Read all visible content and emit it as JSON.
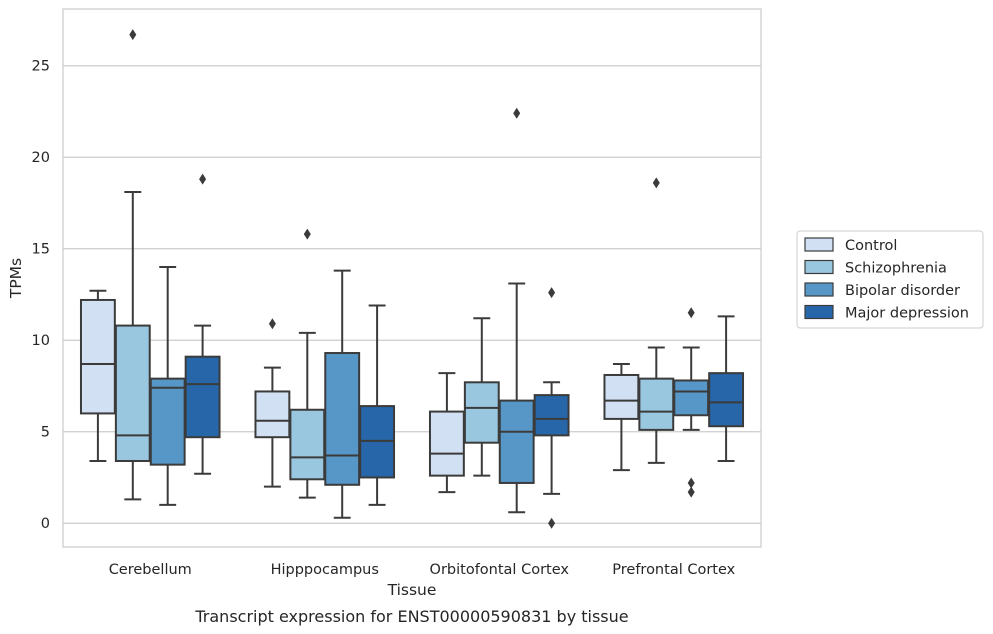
{
  "chart_data": {
    "type": "box",
    "title": "",
    "caption": "Transcript expression for ENST00000590831 by tissue",
    "xlabel": "Tissue",
    "ylabel": "TPMs",
    "ylim": [
      -1.3,
      28.1
    ],
    "yticks": [
      0,
      5,
      10,
      15,
      20,
      25
    ],
    "grid": "horizontal",
    "legend_position": "right",
    "categories": [
      "Cerebellum",
      "Hipppocampus",
      "Orbitofontal Cortex",
      "Prefrontal Cortex"
    ],
    "series": [
      {
        "name": "Control",
        "color": "#d1e0f2",
        "boxes": [
          {
            "whisker_low": 3.4,
            "q1": 6.0,
            "median": 8.7,
            "q3": 12.2,
            "whisker_high": 12.7,
            "outliers": []
          },
          {
            "whisker_low": 2.0,
            "q1": 4.7,
            "median": 5.6,
            "q3": 7.2,
            "whisker_high": 8.5,
            "outliers": [
              10.9
            ]
          },
          {
            "whisker_low": 1.7,
            "q1": 2.6,
            "median": 3.8,
            "q3": 6.1,
            "whisker_high": 8.2,
            "outliers": []
          },
          {
            "whisker_low": 2.9,
            "q1": 5.7,
            "median": 6.7,
            "q3": 8.1,
            "whisker_high": 8.7,
            "outliers": []
          }
        ]
      },
      {
        "name": "Schizophrenia",
        "color": "#9ac7e0",
        "boxes": [
          {
            "whisker_low": 1.3,
            "q1": 3.4,
            "median": 4.8,
            "q3": 10.8,
            "whisker_high": 18.1,
            "outliers": [
              26.7
            ]
          },
          {
            "whisker_low": 1.4,
            "q1": 2.4,
            "median": 3.6,
            "q3": 6.2,
            "whisker_high": 10.4,
            "outliers": [
              15.8
            ]
          },
          {
            "whisker_low": 2.6,
            "q1": 4.4,
            "median": 6.3,
            "q3": 7.7,
            "whisker_high": 11.2,
            "outliers": []
          },
          {
            "whisker_low": 3.3,
            "q1": 5.1,
            "median": 6.1,
            "q3": 7.9,
            "whisker_high": 9.6,
            "outliers": [
              18.6
            ]
          }
        ]
      },
      {
        "name": "Bipolar disorder",
        "color": "#5697c8",
        "boxes": [
          {
            "whisker_low": 1.0,
            "q1": 3.2,
            "median": 7.4,
            "q3": 7.9,
            "whisker_high": 14.0,
            "outliers": []
          },
          {
            "whisker_low": 0.3,
            "q1": 2.1,
            "median": 3.7,
            "q3": 9.3,
            "whisker_high": 13.8,
            "outliers": []
          },
          {
            "whisker_low": 0.6,
            "q1": 2.2,
            "median": 5.0,
            "q3": 6.7,
            "whisker_high": 13.1,
            "outliers": [
              22.4
            ]
          },
          {
            "whisker_low": 5.1,
            "q1": 5.9,
            "median": 7.2,
            "q3": 7.8,
            "whisker_high": 9.6,
            "outliers": [
              11.5,
              2.2,
              1.7
            ]
          }
        ]
      },
      {
        "name": "Major depression",
        "color": "#2666a9",
        "boxes": [
          {
            "whisker_low": 2.7,
            "q1": 4.7,
            "median": 7.6,
            "q3": 9.1,
            "whisker_high": 10.8,
            "outliers": [
              18.8
            ]
          },
          {
            "whisker_low": 1.0,
            "q1": 2.5,
            "median": 4.5,
            "q3": 6.4,
            "whisker_high": 11.9,
            "outliers": []
          },
          {
            "whisker_low": 1.6,
            "q1": 4.8,
            "median": 5.7,
            "q3": 7.0,
            "whisker_high": 7.7,
            "outliers": [
              12.6,
              0.0
            ]
          },
          {
            "whisker_low": 3.4,
            "q1": 5.3,
            "median": 6.6,
            "q3": 8.2,
            "whisker_high": 11.3,
            "outliers": []
          }
        ]
      }
    ]
  }
}
